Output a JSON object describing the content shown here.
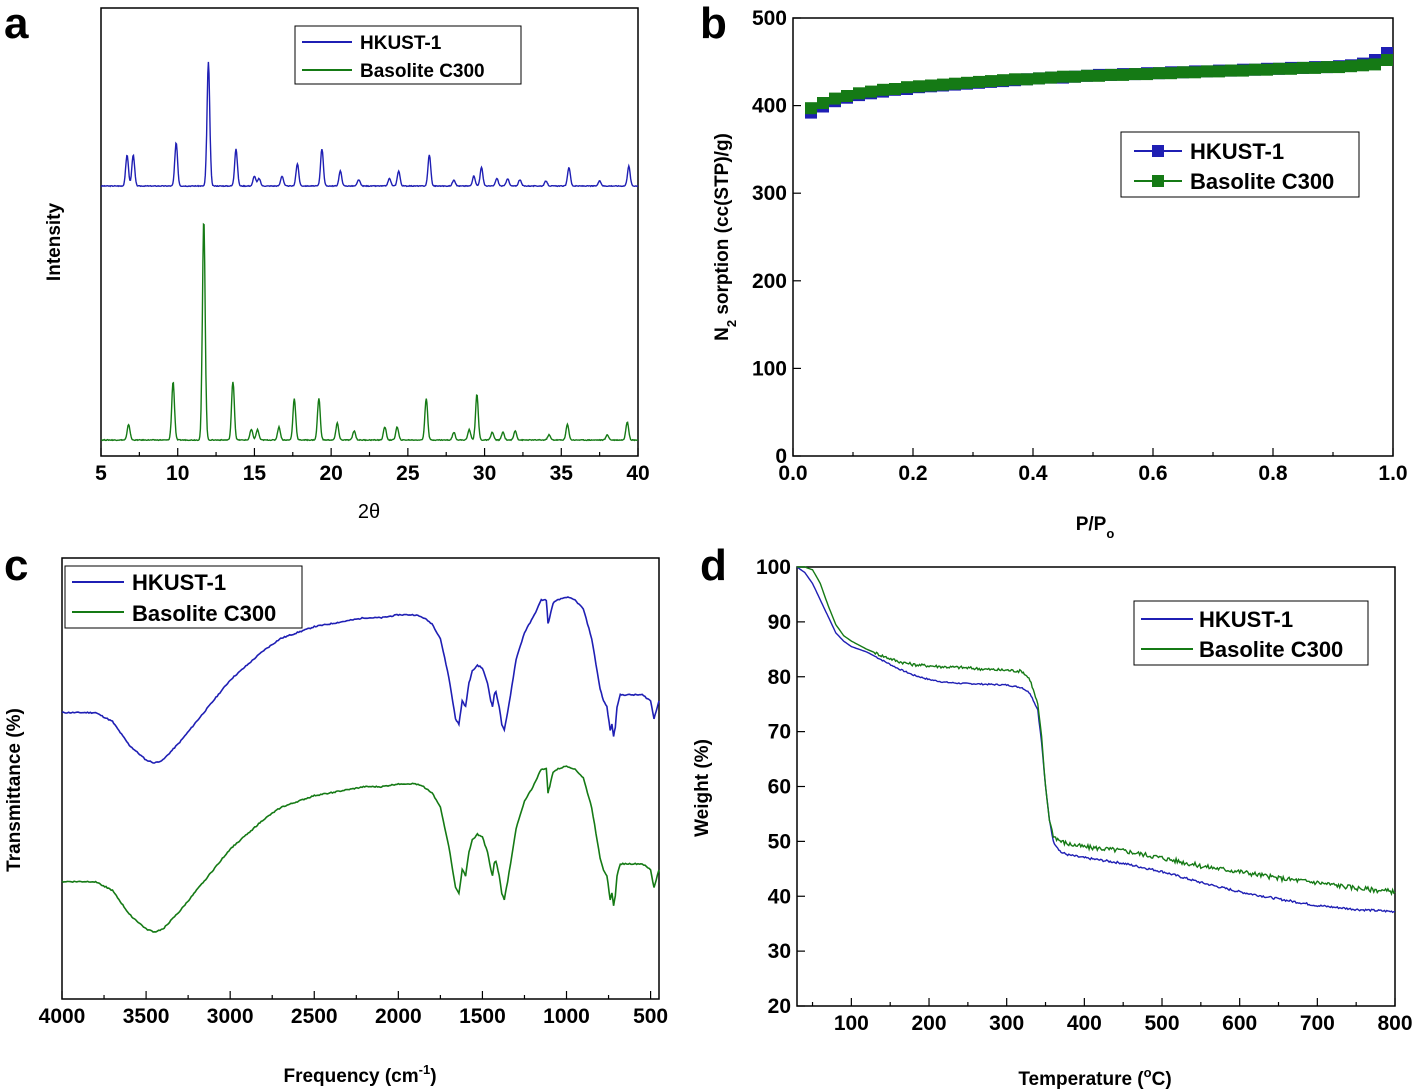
{
  "colors": {
    "hkust": "#1f1fb4",
    "basolite": "#157a15"
  },
  "chart_data": [
    {
      "panel": "a",
      "type": "line",
      "xlabel": "2θ",
      "ylabel": "Intensity",
      "xlim": [
        5,
        40
      ],
      "xticks": [
        "5",
        "10",
        "15",
        "20",
        "25",
        "30",
        "35",
        "40"
      ],
      "legend": [
        "HKUST-1",
        "Basolite C300"
      ],
      "legend_position": "top-right",
      "series": [
        {
          "name": "HKUST-1",
          "baseline": 1.0,
          "peaks": [
            [
              6.7,
              0.25
            ],
            [
              7.1,
              0.25
            ],
            [
              9.9,
              0.35
            ],
            [
              12.0,
              1.0
            ],
            [
              13.8,
              0.3
            ],
            [
              15.0,
              0.08
            ],
            [
              15.3,
              0.06
            ],
            [
              16.8,
              0.08
            ],
            [
              17.8,
              0.18
            ],
            [
              19.4,
              0.3
            ],
            [
              20.6,
              0.12
            ],
            [
              21.8,
              0.05
            ],
            [
              23.8,
              0.06
            ],
            [
              24.4,
              0.12
            ],
            [
              26.4,
              0.25
            ],
            [
              28.0,
              0.05
            ],
            [
              29.3,
              0.08
            ],
            [
              29.8,
              0.15
            ],
            [
              30.8,
              0.06
            ],
            [
              31.5,
              0.06
            ],
            [
              32.3,
              0.05
            ],
            [
              34.0,
              0.04
            ],
            [
              35.5,
              0.15
            ],
            [
              37.5,
              0.04
            ],
            [
              39.4,
              0.16
            ]
          ]
        },
        {
          "name": "Basolite C300",
          "baseline": 0.0,
          "peaks": [
            [
              6.8,
              0.12
            ],
            [
              9.7,
              0.45
            ],
            [
              11.7,
              1.7
            ],
            [
              13.6,
              0.45
            ],
            [
              14.8,
              0.08
            ],
            [
              15.2,
              0.08
            ],
            [
              16.6,
              0.1
            ],
            [
              17.6,
              0.32
            ],
            [
              19.2,
              0.32
            ],
            [
              20.4,
              0.13
            ],
            [
              21.5,
              0.07
            ],
            [
              23.5,
              0.1
            ],
            [
              24.3,
              0.1
            ],
            [
              26.2,
              0.32
            ],
            [
              28.0,
              0.06
            ],
            [
              29.0,
              0.08
            ],
            [
              29.5,
              0.35
            ],
            [
              30.5,
              0.06
            ],
            [
              31.2,
              0.06
            ],
            [
              32.0,
              0.07
            ],
            [
              34.2,
              0.04
            ],
            [
              35.4,
              0.12
            ],
            [
              38.0,
              0.04
            ],
            [
              39.3,
              0.14
            ]
          ]
        }
      ]
    },
    {
      "panel": "b",
      "type": "scatter",
      "xlabel_main": "P/P",
      "xlabel_sub": "o",
      "ylabel_pre": "N",
      "ylabel_sub": "2",
      "ylabel_post": " sorption (cc(STP)/g)",
      "xlim": [
        0.0,
        1.0
      ],
      "ylim": [
        0,
        500
      ],
      "xticks": [
        "0.0",
        "0.2",
        "0.4",
        "0.6",
        "0.8",
        "1.0"
      ],
      "yticks": [
        "0",
        "100",
        "200",
        "300",
        "400",
        "500"
      ],
      "legend": [
        "HKUST-1",
        "Basolite C300"
      ],
      "legend_position": "center-right",
      "series": [
        {
          "name": "HKUST-1",
          "x": [
            0.03,
            0.05,
            0.07,
            0.09,
            0.11,
            0.13,
            0.15,
            0.17,
            0.19,
            0.21,
            0.23,
            0.25,
            0.27,
            0.29,
            0.31,
            0.33,
            0.35,
            0.37,
            0.39,
            0.41,
            0.43,
            0.45,
            0.47,
            0.49,
            0.51,
            0.53,
            0.55,
            0.57,
            0.59,
            0.61,
            0.63,
            0.65,
            0.67,
            0.69,
            0.71,
            0.73,
            0.75,
            0.77,
            0.79,
            0.81,
            0.83,
            0.85,
            0.87,
            0.89,
            0.91,
            0.93,
            0.95,
            0.97,
            0.99
          ],
          "y": [
            392,
            399,
            405,
            409,
            412,
            414,
            416,
            418,
            419,
            421,
            422,
            423,
            424,
            425,
            426,
            427,
            428,
            429,
            430,
            431,
            432,
            432,
            433,
            434,
            435,
            435,
            436,
            436,
            437,
            437,
            438,
            438,
            439,
            439,
            440,
            440,
            441,
            441,
            442,
            442,
            443,
            443,
            444,
            444,
            445,
            446,
            448,
            452,
            460
          ]
        },
        {
          "name": "Basolite C300",
          "x": [
            0.03,
            0.05,
            0.07,
            0.09,
            0.11,
            0.13,
            0.15,
            0.17,
            0.19,
            0.21,
            0.23,
            0.25,
            0.27,
            0.29,
            0.31,
            0.33,
            0.35,
            0.37,
            0.39,
            0.41,
            0.43,
            0.45,
            0.47,
            0.49,
            0.51,
            0.53,
            0.55,
            0.57,
            0.59,
            0.61,
            0.63,
            0.65,
            0.67,
            0.69,
            0.71,
            0.73,
            0.75,
            0.77,
            0.79,
            0.81,
            0.83,
            0.85,
            0.87,
            0.89,
            0.91,
            0.93,
            0.95,
            0.97,
            0.99
          ],
          "y": [
            397,
            403,
            408,
            411,
            414,
            416,
            418,
            419,
            421,
            422,
            423,
            424,
            425,
            426,
            427,
            428,
            429,
            430,
            430,
            431,
            432,
            433,
            433,
            434,
            434,
            435,
            435,
            436,
            436,
            437,
            437,
            438,
            438,
            439,
            439,
            440,
            440,
            441,
            441,
            442,
            442,
            443,
            443,
            444,
            444,
            445,
            446,
            447,
            452
          ]
        }
      ]
    },
    {
      "panel": "c",
      "type": "line",
      "xlabel_main": "Frequency (cm",
      "xlabel_sup": "-1",
      "xlabel_end": ")",
      "ylabel": "Transmittance (%)",
      "xlim": [
        4000,
        450
      ],
      "xticks": [
        "4000",
        "3500",
        "3000",
        "2500",
        "2000",
        "1500",
        "1000",
        "500"
      ],
      "legend": [
        "HKUST-1",
        "Basolite C300"
      ],
      "legend_position": "top-left",
      "series": [
        {
          "name": "HKUST-1",
          "offset": 0.0,
          "x": [
            4000,
            3800,
            3700,
            3600,
            3500,
            3450,
            3400,
            3300,
            3200,
            3100,
            3000,
            2900,
            2800,
            2700,
            2600,
            2500,
            2400,
            2300,
            2200,
            2100,
            2000,
            1950,
            1900,
            1850,
            1800,
            1750,
            1700,
            1660,
            1640,
            1620,
            1600,
            1580,
            1560,
            1530,
            1500,
            1470,
            1450,
            1440,
            1430,
            1420,
            1400,
            1385,
            1370,
            1350,
            1300,
            1250,
            1200,
            1150,
            1120,
            1110,
            1100,
            1080,
            1050,
            1000,
            950,
            900,
            850,
            800,
            780,
            760,
            740,
            730,
            720,
            710,
            700,
            680,
            650,
            600,
            550,
            500,
            480,
            460,
            450
          ],
          "y": [
            0.6,
            0.6,
            0.57,
            0.49,
            0.44,
            0.43,
            0.44,
            0.5,
            0.57,
            0.64,
            0.71,
            0.76,
            0.81,
            0.85,
            0.87,
            0.89,
            0.9,
            0.91,
            0.92,
            0.92,
            0.93,
            0.93,
            0.93,
            0.92,
            0.9,
            0.85,
            0.72,
            0.58,
            0.56,
            0.64,
            0.62,
            0.7,
            0.74,
            0.76,
            0.75,
            0.7,
            0.64,
            0.62,
            0.66,
            0.67,
            0.62,
            0.56,
            0.54,
            0.6,
            0.78,
            0.87,
            0.92,
            0.98,
            0.98,
            0.9,
            0.92,
            0.97,
            0.98,
            0.99,
            0.98,
            0.95,
            0.85,
            0.68,
            0.64,
            0.62,
            0.54,
            0.56,
            0.52,
            0.55,
            0.62,
            0.66,
            0.66,
            0.66,
            0.66,
            0.64,
            0.58,
            0.62,
            0.64
          ]
        },
        {
          "name": "Basolite C300",
          "offset": -0.45,
          "x": [
            4000,
            3800,
            3700,
            3600,
            3500,
            3450,
            3400,
            3300,
            3200,
            3100,
            3000,
            2900,
            2800,
            2700,
            2600,
            2500,
            2400,
            2300,
            2200,
            2100,
            2000,
            1950,
            1900,
            1850,
            1800,
            1750,
            1700,
            1660,
            1640,
            1620,
            1600,
            1580,
            1560,
            1530,
            1500,
            1470,
            1450,
            1440,
            1430,
            1420,
            1400,
            1385,
            1370,
            1350,
            1300,
            1250,
            1200,
            1150,
            1120,
            1110,
            1100,
            1080,
            1050,
            1000,
            950,
            900,
            850,
            800,
            780,
            760,
            740,
            730,
            720,
            710,
            700,
            680,
            650,
            600,
            550,
            500,
            480,
            460,
            450
          ],
          "y": [
            0.6,
            0.6,
            0.57,
            0.49,
            0.44,
            0.43,
            0.44,
            0.5,
            0.57,
            0.64,
            0.71,
            0.76,
            0.81,
            0.85,
            0.87,
            0.89,
            0.9,
            0.91,
            0.92,
            0.92,
            0.93,
            0.93,
            0.93,
            0.92,
            0.9,
            0.85,
            0.72,
            0.58,
            0.56,
            0.64,
            0.62,
            0.7,
            0.74,
            0.76,
            0.75,
            0.7,
            0.64,
            0.62,
            0.66,
            0.67,
            0.62,
            0.56,
            0.54,
            0.6,
            0.78,
            0.87,
            0.92,
            0.98,
            0.98,
            0.9,
            0.92,
            0.97,
            0.98,
            0.99,
            0.98,
            0.95,
            0.85,
            0.68,
            0.64,
            0.62,
            0.54,
            0.56,
            0.52,
            0.55,
            0.62,
            0.66,
            0.66,
            0.66,
            0.66,
            0.64,
            0.58,
            0.62,
            0.64
          ]
        }
      ]
    },
    {
      "panel": "d",
      "type": "line",
      "xlabel_pre": "Temperature (",
      "xlabel_sup": "o",
      "xlabel_post": "C)",
      "ylabel": "Weight (%)",
      "xlim": [
        30,
        800
      ],
      "ylim": [
        20,
        100
      ],
      "xticks": [
        "100",
        "200",
        "300",
        "400",
        "500",
        "600",
        "700",
        "800"
      ],
      "yticks": [
        "20",
        "30",
        "40",
        "50",
        "60",
        "70",
        "80",
        "90",
        "100"
      ],
      "legend": [
        "HKUST-1",
        "Basolite C300"
      ],
      "legend_position": "top-right",
      "series": [
        {
          "name": "HKUST-1",
          "x": [
            30,
            40,
            50,
            60,
            70,
            80,
            90,
            100,
            120,
            140,
            160,
            180,
            200,
            220,
            240,
            260,
            280,
            300,
            320,
            330,
            340,
            345,
            350,
            355,
            360,
            370,
            380,
            400,
            450,
            500,
            550,
            600,
            650,
            700,
            750,
            800
          ],
          "y": [
            100,
            99,
            97,
            94,
            91,
            88,
            86.5,
            85.5,
            84.5,
            83,
            81.5,
            80.3,
            79.5,
            79,
            78.8,
            78.7,
            78.6,
            78.5,
            78,
            77,
            74,
            68,
            60,
            54,
            50,
            48,
            47.5,
            47,
            46,
            44.5,
            42.5,
            40.8,
            39.5,
            38.3,
            37.6,
            37.2
          ]
        },
        {
          "name": "Basolite C300",
          "x": [
            30,
            40,
            50,
            60,
            70,
            80,
            90,
            100,
            120,
            140,
            160,
            180,
            200,
            220,
            240,
            260,
            280,
            300,
            320,
            330,
            340,
            345,
            350,
            355,
            360,
            370,
            380,
            400,
            450,
            500,
            550,
            600,
            650,
            700,
            750,
            800
          ],
          "y": [
            100,
            100,
            99.5,
            97,
            93,
            89.5,
            87.5,
            86.5,
            85,
            83.8,
            82.8,
            82.2,
            82,
            81.8,
            81.7,
            81.5,
            81.3,
            81.2,
            81,
            79.5,
            75,
            69,
            60,
            54,
            51,
            50,
            49.5,
            49,
            48.3,
            47,
            45.5,
            44.5,
            43.3,
            42.5,
            41.5,
            40.8
          ]
        }
      ]
    }
  ]
}
